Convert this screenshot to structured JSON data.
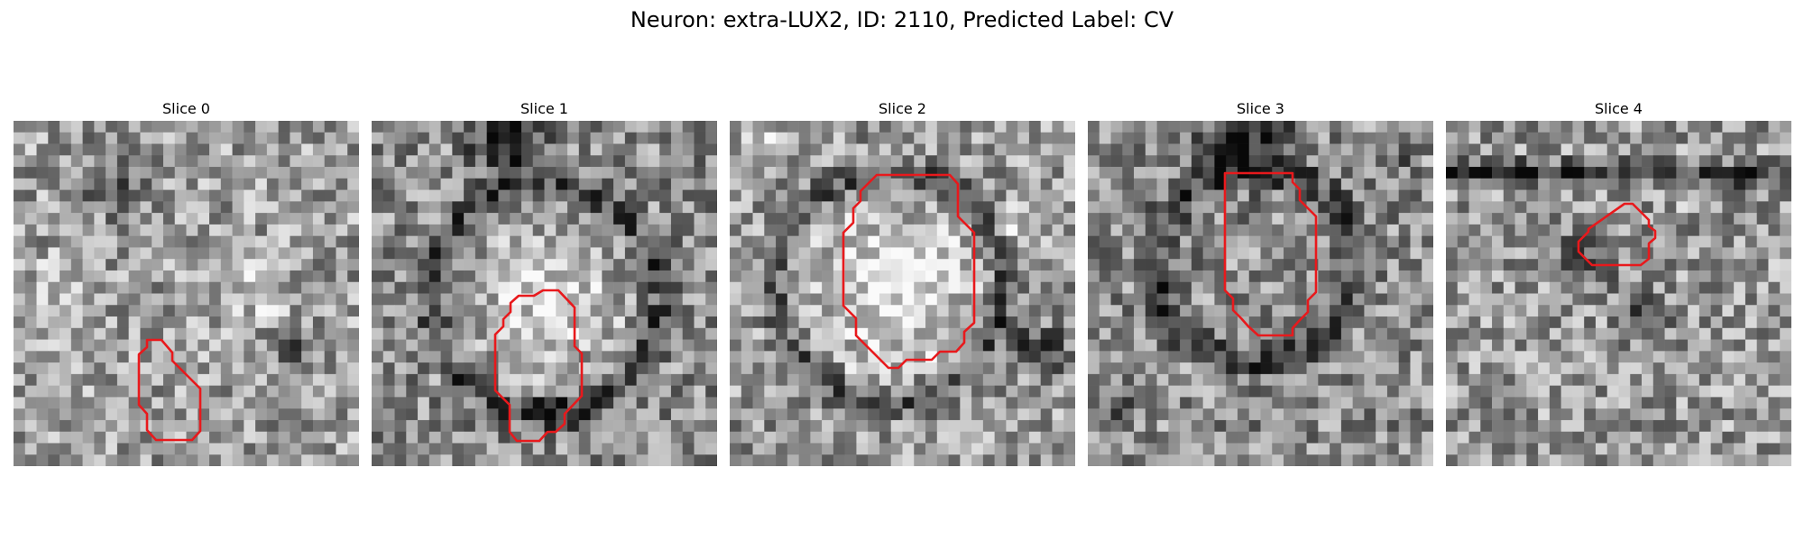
{
  "figure": {
    "title": "Neuron: extra-LUX2, ID: 2110, Predicted Label: CV"
  },
  "panels": [
    {
      "title": "Slice 0"
    },
    {
      "title": "Slice 1"
    },
    {
      "title": "Slice 2"
    },
    {
      "title": "Slice 3"
    },
    {
      "title": "Slice 4"
    }
  ],
  "colors": {
    "outline": "#e8191c",
    "background": "#ffffff"
  }
}
